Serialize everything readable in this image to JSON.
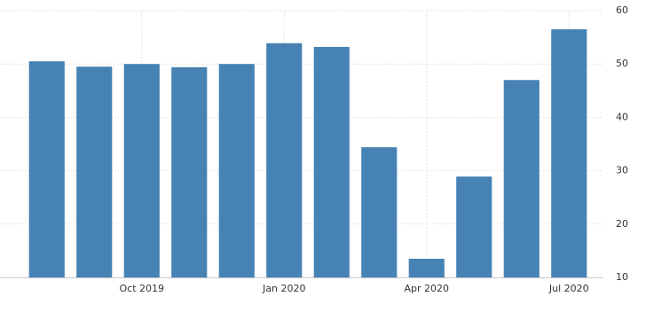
{
  "chart_data": {
    "type": "bar",
    "categories": [
      null,
      null,
      "Oct 2019",
      null,
      null,
      "Jan 2020",
      null,
      null,
      "Apr 2020",
      null,
      null,
      "Jul 2020"
    ],
    "values": [
      50.5,
      49.5,
      50.0,
      49.4,
      50.0,
      53.9,
      53.2,
      34.4,
      13.5,
      28.9,
      47.0,
      56.5
    ],
    "color": "#4682b4",
    "ylim": [
      10,
      60
    ],
    "yticks": [
      10,
      20,
      30,
      40,
      50,
      60
    ],
    "grid": true
  }
}
